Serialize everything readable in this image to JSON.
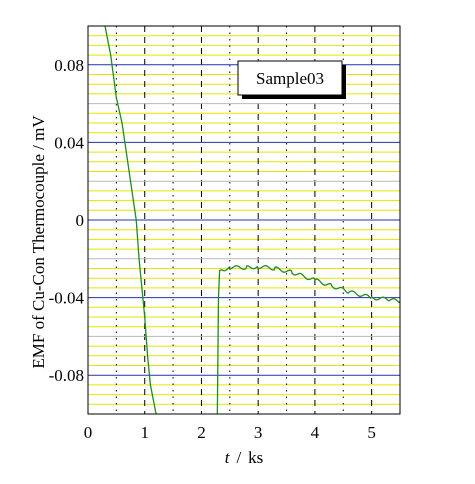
{
  "chart_data": {
    "type": "line",
    "xlabel_var": "t",
    "xlabel_sep": "/",
    "xlabel_unit": "ks",
    "ylabel": "EMF of Cu-Con Thermocouple / mV",
    "xlim": [
      0,
      5.5
    ],
    "ylim": [
      -0.1,
      0.1
    ],
    "x_ticks": [
      0,
      1,
      2,
      3,
      4,
      5
    ],
    "x_tick_labels": [
      "0",
      "1",
      "2",
      "3",
      "4",
      "5"
    ],
    "y_ticks": [
      0.08,
      0.04,
      0,
      -0.04,
      -0.08
    ],
    "y_tick_labels": [
      "0.08",
      "0.04",
      "0",
      "-0.04",
      "-0.08"
    ],
    "grid": true,
    "legend_position": "top-right",
    "colors": {
      "series": "#228b22",
      "major_h_grid": "#2233aa",
      "minor_h_grid": "#e6e600",
      "v_grid": "#000000",
      "frame": "#000000"
    },
    "series": [
      {
        "name": "Sample03",
        "segments": [
          [
            [
              0.3,
              0.1
            ],
            [
              0.4,
              0.085
            ],
            [
              0.5,
              0.063
            ],
            [
              0.6,
              0.05
            ],
            [
              0.7,
              0.03
            ],
            [
              0.8,
              0.01
            ],
            [
              0.85,
              0.0
            ],
            [
              0.9,
              -0.02
            ],
            [
              1.0,
              -0.05
            ],
            [
              1.05,
              -0.07
            ],
            [
              1.1,
              -0.085
            ],
            [
              1.2,
              -0.1
            ]
          ],
          [
            [
              2.28,
              -0.1
            ],
            [
              2.29,
              -0.07
            ],
            [
              2.3,
              -0.04
            ],
            [
              2.32,
              -0.026
            ],
            [
              2.5,
              -0.0245
            ],
            [
              2.8,
              -0.0245
            ],
            [
              3.0,
              -0.024
            ],
            [
              3.3,
              -0.025
            ],
            [
              3.6,
              -0.027
            ],
            [
              4.0,
              -0.031
            ],
            [
              4.3,
              -0.034
            ],
            [
              4.6,
              -0.037
            ],
            [
              5.0,
              -0.04
            ],
            [
              5.3,
              -0.041
            ],
            [
              5.5,
              -0.042
            ]
          ]
        ]
      }
    ]
  }
}
